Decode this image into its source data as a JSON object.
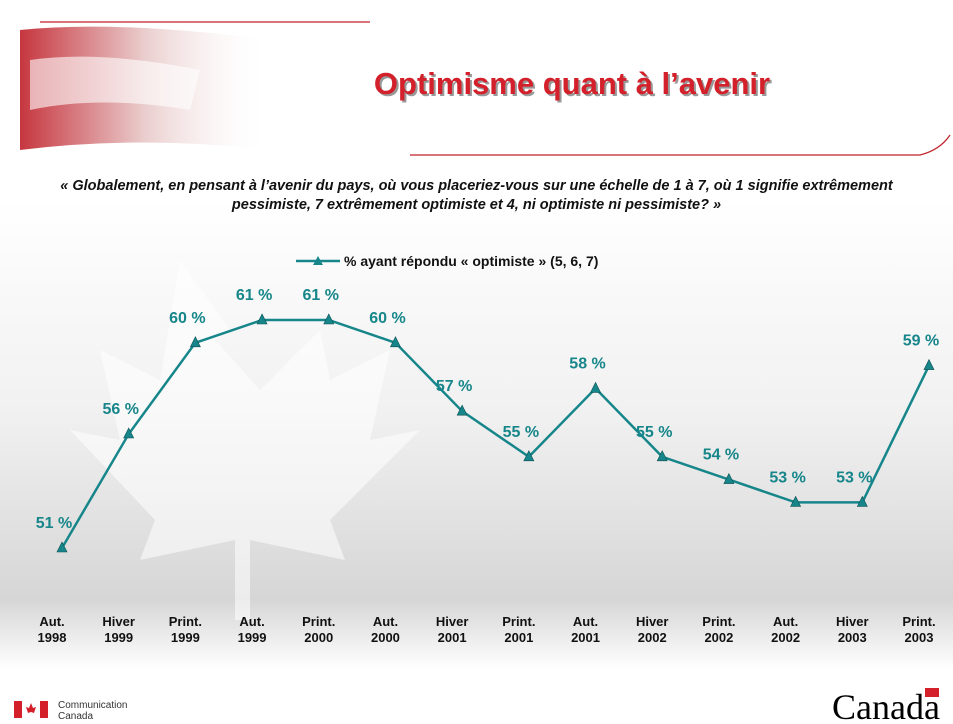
{
  "chart_data": {
    "type": "line",
    "title": "Optimisme quant à l’avenir",
    "subtitle": "« Globalement, en pensant à l’avenir du pays, où vous placeriez-vous sur une échelle de 1 à 7, où 1 signifie extrêmement pessimiste, 7 extrêmement optimiste et 4, ni optimiste ni pessimiste? »",
    "categories": [
      "Aut. 1998",
      "Hiver 1999",
      "Print. 1999",
      "Aut. 1999",
      "Print. 2000",
      "Aut. 2000",
      "Hiver 2001",
      "Print. 2001",
      "Aut. 2001",
      "Hiver 2002",
      "Print. 2002",
      "Aut. 2002",
      "Hiver 2003",
      "Print. 2003"
    ],
    "series": [
      {
        "name": "% ayant répondu « optimiste »  (5, 6, 7)",
        "color": "#17868a",
        "values": [
          51,
          56,
          60,
          61,
          61,
          60,
          57,
          55,
          58,
          55,
          54,
          53,
          53,
          59
        ],
        "value_labels": [
          "51 %",
          "56 %",
          "60 %",
          "61 %",
          "61 %",
          "60 %",
          "57 %",
          "55 %",
          "58 %",
          "55 %",
          "54 %",
          "53 %",
          "53 %",
          "59 %"
        ]
      }
    ]
  },
  "footer": {
    "department": [
      "Communication",
      "Canada"
    ],
    "wordmark": "Canada"
  }
}
